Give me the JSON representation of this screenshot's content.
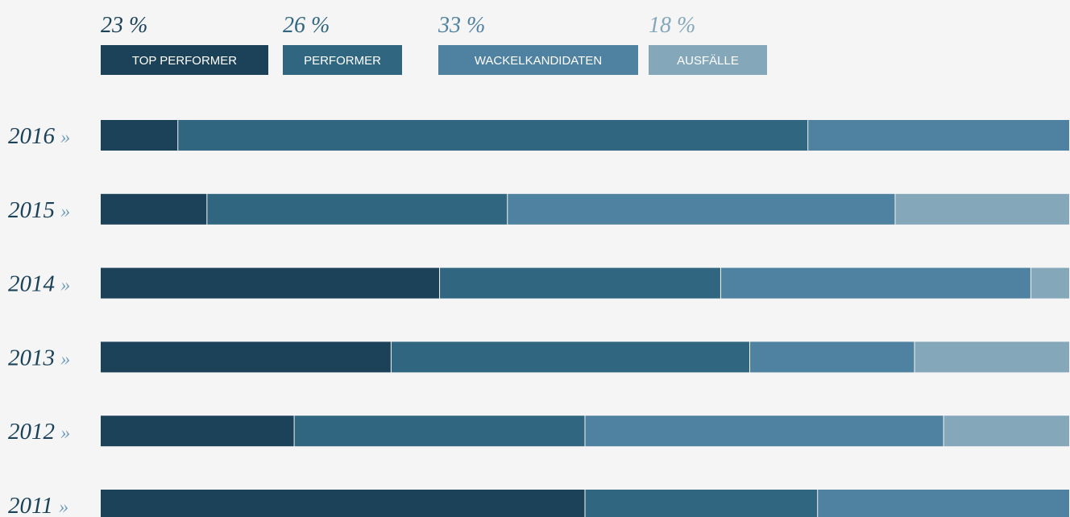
{
  "chart_data": {
    "type": "stacked_bar_100",
    "categories": [
      "2016",
      "2015",
      "2014",
      "2013",
      "2012",
      "2011"
    ],
    "category_suffix": "»",
    "series": [
      {
        "name": "TOP PERFORMER",
        "color": "#1c4259",
        "total_label": "23 %",
        "values": [
          8,
          11,
          35,
          30,
          20,
          50
        ]
      },
      {
        "name": "PERFORMER",
        "color": "#306680",
        "total_label": "26 %",
        "values": [
          65,
          31,
          29,
          37,
          30,
          24
        ]
      },
      {
        "name": "WACKELKANDIDATEN",
        "color": "#4f81a0",
        "total_label": "33 %",
        "values": [
          27,
          40,
          32,
          17,
          37,
          26
        ]
      },
      {
        "name": "AUSFÄLLE",
        "color": "#84a7ba",
        "total_label": "18 %",
        "values": [
          0,
          18,
          4,
          16,
          13,
          0
        ]
      }
    ],
    "xlim": [
      0,
      100
    ]
  }
}
